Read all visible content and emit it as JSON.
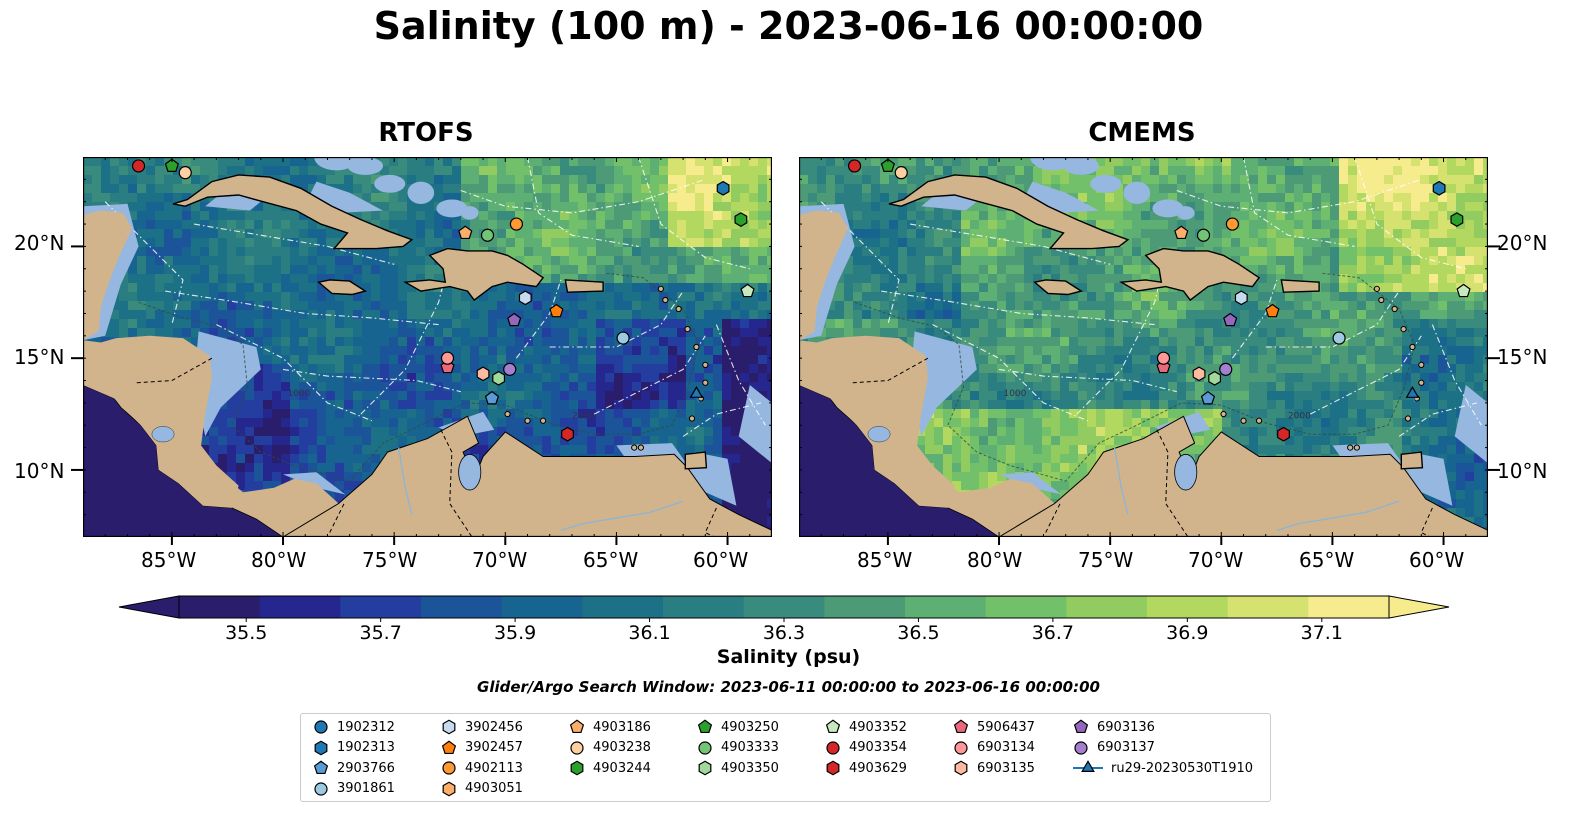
{
  "title": "Salinity (100 m) - 2023-06-16 00:00:00",
  "panels": [
    {
      "title": "RTOFS",
      "model": "rtofs"
    },
    {
      "title": "CMEMS",
      "model": "cmems"
    }
  ],
  "lat_ticks": [
    "20°N",
    "15°N",
    "10°N"
  ],
  "lon_ticks": [
    "85°W",
    "80°W",
    "75°W",
    "70°W",
    "65°W",
    "60°W"
  ],
  "colorbar": {
    "label": "Salinity (psu)",
    "ticks": [
      "35.5",
      "35.7",
      "35.9",
      "36.1",
      "36.3",
      "36.5",
      "36.7",
      "36.9",
      "37.1"
    ],
    "tick_values": [
      35.5,
      35.7,
      35.9,
      36.1,
      36.3,
      36.5,
      36.7,
      36.9,
      37.1
    ],
    "range": [
      35.4,
      37.2
    ],
    "colors": [
      "#2a1d6b",
      "#26268f",
      "#243ea0",
      "#1b5499",
      "#186490",
      "#1d7186",
      "#2a7e82",
      "#398b7d",
      "#4c9a76",
      "#5daf73",
      "#72c16a",
      "#92cc60",
      "#b3d85f",
      "#d6e26f",
      "#f6ec8e"
    ],
    "colormap": "haline"
  },
  "search_window": "Glider/Argo Search Window: 2023-06-11 00:00:00 to 2023-06-16 00:00:00",
  "chart_data": {
    "type": "map",
    "variable": "Salinity (psu)",
    "depth": "100 m",
    "time": "2023-06-16 00:00:00",
    "extent": {
      "lon": [
        -89,
        -58
      ],
      "lat": [
        7,
        24
      ]
    },
    "isobath_labels": [
      "1000",
      "2000"
    ],
    "platforms": [
      {
        "id": "1902312",
        "marker": "circle",
        "color": "#1f77b4",
        "lon": null,
        "lat": null
      },
      {
        "id": "1902313",
        "marker": "hexagon",
        "color": "#1f77b4",
        "lon": -60.2,
        "lat": 22.6
      },
      {
        "id": "2903766",
        "marker": "pentagon",
        "color": "#5b9bd5",
        "lon": -70.6,
        "lat": 13.2
      },
      {
        "id": "3901861",
        "marker": "circle",
        "color": "#9ecae1",
        "lon": -64.7,
        "lat": 15.9
      },
      {
        "id": "3902456",
        "marker": "hexagon",
        "color": "#c6dbef",
        "lon": -69.1,
        "lat": 17.7
      },
      {
        "id": "3902457",
        "marker": "pentagon",
        "color": "#ff7f0e",
        "lon": -67.7,
        "lat": 17.1
      },
      {
        "id": "4902113",
        "marker": "circle",
        "color": "#ff9933",
        "lon": -69.5,
        "lat": 21.0
      },
      {
        "id": "4903051",
        "marker": "hexagon",
        "color": "#fdae6b",
        "lon": null,
        "lat": null
      },
      {
        "id": "4903186",
        "marker": "pentagon",
        "color": "#fdae6b",
        "lon": -71.8,
        "lat": 20.6
      },
      {
        "id": "4903238",
        "marker": "circle",
        "color": "#fdd0a2",
        "lon": -84.4,
        "lat": 23.3
      },
      {
        "id": "4903244",
        "marker": "hexagon",
        "color": "#2ca02c",
        "lon": -59.4,
        "lat": 21.2
      },
      {
        "id": "4903250",
        "marker": "pentagon",
        "color": "#2ca02c",
        "lon": -85.0,
        "lat": 23.6
      },
      {
        "id": "4903333",
        "marker": "circle",
        "color": "#74c476",
        "lon": -70.8,
        "lat": 20.5
      },
      {
        "id": "4903350",
        "marker": "hexagon",
        "color": "#a1d99b",
        "lon": -70.3,
        "lat": 14.1
      },
      {
        "id": "4903352",
        "marker": "pentagon",
        "color": "#c7e9c0",
        "lon": -59.1,
        "lat": 18.0
      },
      {
        "id": "4903354",
        "marker": "circle",
        "color": "#d62728",
        "lon": -86.5,
        "lat": 23.6
      },
      {
        "id": "4903629",
        "marker": "hexagon",
        "color": "#d62728",
        "lon": -67.2,
        "lat": 11.6
      },
      {
        "id": "5906437",
        "marker": "pentagon",
        "color": "#e7697a",
        "lon": -72.6,
        "lat": 14.6
      },
      {
        "id": "6903134",
        "marker": "circle",
        "color": "#ff9896",
        "lon": -72.6,
        "lat": 15.0
      },
      {
        "id": "6903135",
        "marker": "hexagon",
        "color": "#fcbba1",
        "lon": -71.0,
        "lat": 14.3
      },
      {
        "id": "6903136",
        "marker": "pentagon",
        "color": "#9467bd",
        "lon": -69.6,
        "lat": 16.7
      },
      {
        "id": "6903137",
        "marker": "circle",
        "color": "#a57fcf",
        "lon": -69.8,
        "lat": 14.5
      },
      {
        "id": "ru29-20230530T1910",
        "marker": "triangle",
        "color": "#1f77b4",
        "lon": -61.4,
        "lat": 13.4
      }
    ]
  }
}
